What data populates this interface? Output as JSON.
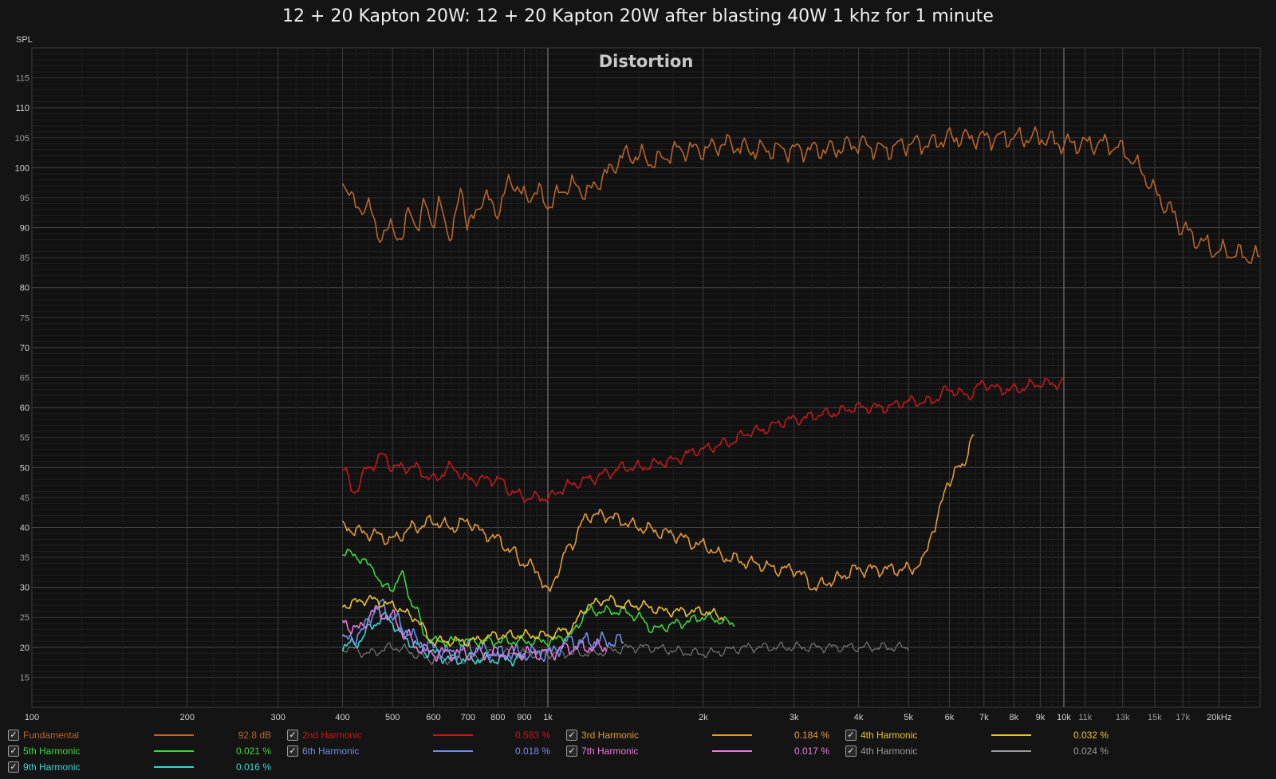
{
  "window": {
    "title": "12 + 20 Kapton 20W: 12 + 20 Kapton 20W after blasting 40W 1 khz for 1 minute"
  },
  "chart_data": {
    "type": "line",
    "title": "Distortion",
    "ylabel": "SPL",
    "xlabel": "",
    "x_scale": "log",
    "xlim": [
      100,
      24000
    ],
    "ylim": [
      10,
      120
    ],
    "grid": true,
    "y_ticks": [
      15,
      20,
      25,
      30,
      35,
      40,
      45,
      50,
      55,
      60,
      65,
      70,
      75,
      80,
      85,
      90,
      95,
      100,
      105,
      110,
      115
    ],
    "x_ticks": [
      {
        "value": 100,
        "label": "100"
      },
      {
        "value": 200,
        "label": "200"
      },
      {
        "value": 300,
        "label": "300"
      },
      {
        "value": 400,
        "label": "400"
      },
      {
        "value": 500,
        "label": "500"
      },
      {
        "value": 600,
        "label": "600"
      },
      {
        "value": 700,
        "label": "700"
      },
      {
        "value": 800,
        "label": "800"
      },
      {
        "value": 900,
        "label": "900"
      },
      {
        "value": 1000,
        "label": "1k"
      },
      {
        "value": 2000,
        "label": "2k"
      },
      {
        "value": 3000,
        "label": "3k"
      },
      {
        "value": 4000,
        "label": "4k"
      },
      {
        "value": 5000,
        "label": "5k"
      },
      {
        "value": 6000,
        "label": "6k"
      },
      {
        "value": 7000,
        "label": "7k"
      },
      {
        "value": 8000,
        "label": "8k"
      },
      {
        "value": 9000,
        "label": "9k"
      },
      {
        "value": 10000,
        "label": "10k"
      },
      {
        "value": 11000,
        "label": "11k"
      },
      {
        "value": 13000,
        "label": "13k"
      },
      {
        "value": 15000,
        "label": "15k"
      },
      {
        "value": 17000,
        "label": "17k"
      },
      {
        "value": 20000,
        "label": "20kHz"
      }
    ],
    "series": [
      {
        "name": "Fundamental",
        "color": "#b8642a",
        "value": "92.8 dB",
        "checked": true,
        "wiggle": 2.2,
        "points": [
          [
            400,
            98
          ],
          [
            420,
            94
          ],
          [
            450,
            93
          ],
          [
            480,
            88
          ],
          [
            500,
            91
          ],
          [
            520,
            87
          ],
          [
            540,
            94
          ],
          [
            560,
            89
          ],
          [
            580,
            95
          ],
          [
            600,
            90
          ],
          [
            620,
            94
          ],
          [
            650,
            88
          ],
          [
            680,
            97
          ],
          [
            700,
            90
          ],
          [
            750,
            95
          ],
          [
            800,
            93
          ],
          [
            850,
            98
          ],
          [
            900,
            95
          ],
          [
            950,
            96
          ],
          [
            1000,
            94
          ],
          [
            1100,
            97
          ],
          [
            1200,
            96
          ],
          [
            1300,
            99
          ],
          [
            1400,
            102
          ],
          [
            1500,
            102
          ],
          [
            1600,
            101
          ],
          [
            1800,
            103
          ],
          [
            2000,
            103
          ],
          [
            2200,
            104
          ],
          [
            2500,
            103
          ],
          [
            3000,
            103
          ],
          [
            3500,
            103
          ],
          [
            4000,
            104
          ],
          [
            4500,
            103
          ],
          [
            5000,
            104
          ],
          [
            5500,
            104
          ],
          [
            6000,
            105
          ],
          [
            7000,
            105
          ],
          [
            8000,
            105
          ],
          [
            9000,
            105
          ],
          [
            10000,
            104
          ],
          [
            11000,
            104
          ],
          [
            12000,
            104
          ],
          [
            13000,
            103
          ],
          [
            14000,
            100
          ],
          [
            15000,
            96
          ],
          [
            16000,
            93
          ],
          [
            17000,
            90
          ],
          [
            18000,
            88
          ],
          [
            20000,
            86
          ],
          [
            24000,
            85
          ]
        ]
      },
      {
        "name": "2nd Harmonic",
        "color": "#c01a1a",
        "value": "0.583 %",
        "checked": true,
        "wiggle": 1.2,
        "points": [
          [
            400,
            50
          ],
          [
            420,
            46
          ],
          [
            450,
            50
          ],
          [
            480,
            52
          ],
          [
            500,
            50
          ],
          [
            550,
            50
          ],
          [
            600,
            48
          ],
          [
            650,
            50
          ],
          [
            700,
            48
          ],
          [
            800,
            48
          ],
          [
            850,
            46
          ],
          [
            900,
            45
          ],
          [
            1000,
            45
          ],
          [
            1100,
            47
          ],
          [
            1200,
            48
          ],
          [
            1300,
            49
          ],
          [
            1400,
            50
          ],
          [
            1500,
            50
          ],
          [
            1700,
            51
          ],
          [
            2000,
            53
          ],
          [
            2200,
            54
          ],
          [
            2500,
            56
          ],
          [
            3000,
            58
          ],
          [
            3500,
            59
          ],
          [
            4000,
            60
          ],
          [
            4500,
            60
          ],
          [
            5000,
            61
          ],
          [
            5500,
            61
          ],
          [
            6000,
            63
          ],
          [
            6500,
            62
          ],
          [
            7000,
            64
          ],
          [
            7500,
            63
          ],
          [
            8000,
            63
          ],
          [
            9000,
            64
          ],
          [
            10000,
            64
          ]
        ]
      },
      {
        "name": "3rd Harmonic",
        "color": "#e39a3a",
        "value": "0.184 %",
        "checked": true,
        "wiggle": 1.4,
        "points": [
          [
            400,
            40
          ],
          [
            450,
            39
          ],
          [
            500,
            38
          ],
          [
            550,
            40
          ],
          [
            600,
            41
          ],
          [
            650,
            40
          ],
          [
            700,
            41
          ],
          [
            750,
            39
          ],
          [
            800,
            38
          ],
          [
            850,
            36
          ],
          [
            900,
            34
          ],
          [
            950,
            33
          ],
          [
            1000,
            29
          ],
          [
            1050,
            33
          ],
          [
            1100,
            37
          ],
          [
            1200,
            42
          ],
          [
            1300,
            42
          ],
          [
            1400,
            41
          ],
          [
            1500,
            40
          ],
          [
            1700,
            39
          ],
          [
            2000,
            37
          ],
          [
            2200,
            35
          ],
          [
            2500,
            34
          ],
          [
            2800,
            33
          ],
          [
            3000,
            33
          ],
          [
            3300,
            30
          ],
          [
            3500,
            31
          ],
          [
            4000,
            33
          ],
          [
            4500,
            33
          ],
          [
            5000,
            33
          ],
          [
            5300,
            34
          ],
          [
            5600,
            40
          ],
          [
            6000,
            48
          ],
          [
            6300,
            50
          ],
          [
            6700,
            55
          ]
        ]
      },
      {
        "name": "4th Harmonic",
        "color": "#e8c23a",
        "value": "0.032 %",
        "checked": true,
        "wiggle": 1.0,
        "points": [
          [
            400,
            27
          ],
          [
            450,
            28
          ],
          [
            500,
            27
          ],
          [
            550,
            25
          ],
          [
            600,
            21
          ],
          [
            650,
            21
          ],
          [
            700,
            21
          ],
          [
            800,
            22
          ],
          [
            900,
            22
          ],
          [
            1000,
            22
          ],
          [
            1100,
            23
          ],
          [
            1200,
            27
          ],
          [
            1300,
            28
          ],
          [
            1400,
            27
          ],
          [
            1500,
            27
          ],
          [
            1700,
            26
          ],
          [
            2000,
            26
          ],
          [
            2200,
            25
          ]
        ]
      },
      {
        "name": "5th Harmonic",
        "color": "#3fd63f",
        "value": "0.021 %",
        "checked": true,
        "wiggle": 1.0,
        "points": [
          [
            400,
            36
          ],
          [
            430,
            35
          ],
          [
            460,
            33
          ],
          [
            480,
            30
          ],
          [
            500,
            30
          ],
          [
            520,
            32
          ],
          [
            550,
            27
          ],
          [
            580,
            22
          ],
          [
            600,
            21
          ],
          [
            700,
            21
          ],
          [
            800,
            21
          ],
          [
            900,
            21
          ],
          [
            1000,
            21
          ],
          [
            1100,
            22
          ],
          [
            1200,
            26
          ],
          [
            1300,
            26
          ],
          [
            1400,
            26
          ],
          [
            1500,
            25
          ],
          [
            1600,
            23
          ],
          [
            1800,
            24
          ],
          [
            2000,
            25
          ],
          [
            2300,
            24
          ]
        ]
      },
      {
        "name": "6th Harmonic",
        "color": "#6f8fe6",
        "value": "0.018 %",
        "checked": true,
        "wiggle": 1.6,
        "points": [
          [
            400,
            21
          ],
          [
            430,
            22
          ],
          [
            460,
            26
          ],
          [
            480,
            27
          ],
          [
            500,
            25
          ],
          [
            530,
            23
          ],
          [
            560,
            21
          ],
          [
            600,
            20
          ],
          [
            650,
            19
          ],
          [
            700,
            20
          ],
          [
            800,
            19
          ],
          [
            900,
            19
          ],
          [
            1000,
            19
          ],
          [
            1100,
            21
          ],
          [
            1200,
            21
          ],
          [
            1300,
            21
          ],
          [
            1400,
            21
          ]
        ]
      },
      {
        "name": "7th Harmonic",
        "color": "#e87ae0",
        "value": "0.017 %",
        "checked": true,
        "wiggle": 1.4,
        "points": [
          [
            400,
            24
          ],
          [
            430,
            23
          ],
          [
            460,
            26
          ],
          [
            500,
            25
          ],
          [
            530,
            22
          ],
          [
            560,
            20
          ],
          [
            600,
            19
          ],
          [
            700,
            19
          ],
          [
            800,
            19
          ],
          [
            1000,
            19
          ],
          [
            1100,
            20
          ],
          [
            1200,
            20
          ],
          [
            1300,
            20
          ]
        ]
      },
      {
        "name": "4th Harmonic",
        "color": "#9a9a9a",
        "value": "0.024 %",
        "checked": true,
        "wiggle": 1.0,
        "points": [
          [
            400,
            20
          ],
          [
            450,
            19
          ],
          [
            500,
            20
          ],
          [
            600,
            18
          ],
          [
            700,
            18
          ],
          [
            800,
            19
          ],
          [
            1000,
            19
          ],
          [
            1200,
            19
          ],
          [
            1500,
            20
          ],
          [
            2000,
            19
          ],
          [
            2500,
            20
          ],
          [
            3000,
            20
          ],
          [
            3500,
            20
          ],
          [
            4000,
            20
          ],
          [
            4500,
            20
          ],
          [
            5000,
            20
          ]
        ]
      },
      {
        "name": "9th Harmonic",
        "color": "#3fd2d2",
        "value": "0.016 %",
        "checked": true,
        "wiggle": 1.2,
        "points": [
          [
            400,
            20
          ],
          [
            430,
            21
          ],
          [
            460,
            24
          ],
          [
            490,
            25
          ],
          [
            520,
            22
          ],
          [
            560,
            20
          ],
          [
            600,
            19
          ],
          [
            650,
            18
          ],
          [
            700,
            18
          ],
          [
            800,
            18
          ],
          [
            900,
            18
          ]
        ]
      }
    ]
  }
}
